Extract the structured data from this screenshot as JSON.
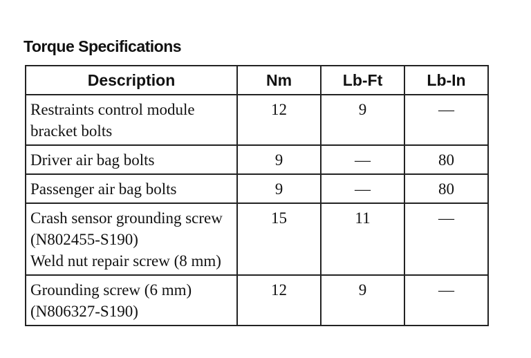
{
  "title": "Torque Specifications",
  "table": {
    "headers": [
      "Description",
      "Nm",
      "Lb-Ft",
      "Lb-In"
    ],
    "rows": [
      {
        "description": [
          "Restraints control module bracket bolts"
        ],
        "values": [
          "12",
          "9",
          "—"
        ]
      },
      {
        "description": [
          "Driver air bag bolts"
        ],
        "values": [
          "9",
          "—",
          "80"
        ]
      },
      {
        "description": [
          "Passenger air bag bolts"
        ],
        "values": [
          "9",
          "—",
          "80"
        ]
      },
      {
        "description": [
          "Crash sensor grounding screw (N802455-S190)",
          "Weld nut repair screw (8 mm)"
        ],
        "values": [
          "15",
          "11",
          "—"
        ]
      },
      {
        "description": [
          "Grounding screw (6 mm) (N806327-S190)"
        ],
        "values": [
          "12",
          "9",
          "—"
        ]
      }
    ]
  }
}
